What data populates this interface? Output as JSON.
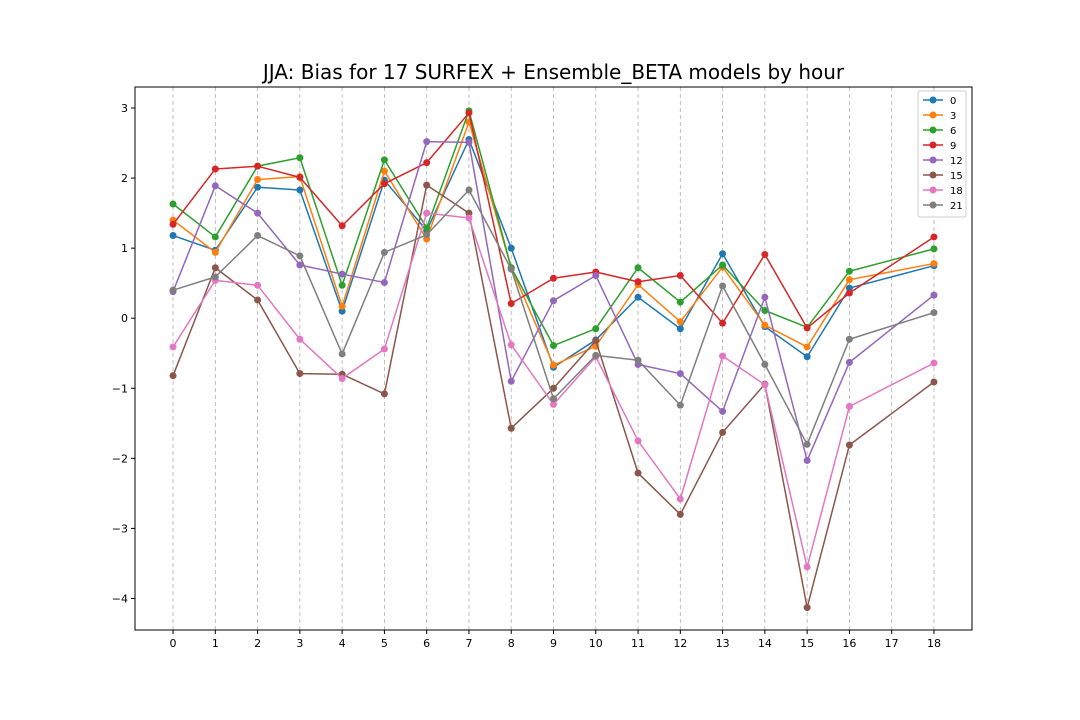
{
  "chart_data": {
    "type": "line",
    "title": "JJA: Bias for 17 SURFEX + Ensemble_BETA models by hour",
    "xlabel": "",
    "ylabel": "",
    "x": [
      0,
      1,
      2,
      3,
      4,
      5,
      6,
      7,
      8,
      9,
      10,
      11,
      12,
      13,
      14,
      15,
      16,
      18
    ],
    "xticks": [
      "0",
      "1",
      "2",
      "3",
      "4",
      "5",
      "6",
      "7",
      "8",
      "9",
      "10",
      "11",
      "12",
      "13",
      "14",
      "15",
      "16",
      "17",
      "18"
    ],
    "yticks": [
      "3",
      "2",
      "1",
      "0",
      "−1",
      "−2",
      "−3",
      "−4"
    ],
    "xlim": [
      -0.9,
      18.9
    ],
    "ylim": [
      -4.45,
      3.3
    ],
    "grid": "x-dashed",
    "legend": "top-right",
    "series": [
      {
        "name": "0",
        "color": "#1f77b4",
        "values": [
          1.18,
          0.97,
          1.87,
          1.83,
          0.1,
          1.97,
          1.25,
          2.55,
          1.0,
          -0.7,
          -0.31,
          0.3,
          -0.15,
          0.92,
          -0.12,
          -0.55,
          0.43,
          0.75
        ]
      },
      {
        "name": "3",
        "color": "#ff7f0e",
        "values": [
          1.4,
          0.94,
          1.98,
          2.02,
          0.17,
          2.1,
          1.13,
          2.8,
          0.72,
          -0.67,
          -0.4,
          0.48,
          -0.05,
          0.73,
          -0.1,
          -0.41,
          0.55,
          0.78
        ]
      },
      {
        "name": "6",
        "color": "#2ca02c",
        "values": [
          1.63,
          1.16,
          2.17,
          2.29,
          0.47,
          2.26,
          1.29,
          2.96,
          0.72,
          -0.39,
          -0.15,
          0.72,
          0.23,
          0.76,
          0.11,
          -0.13,
          0.67,
          0.99
        ]
      },
      {
        "name": "9",
        "color": "#d62728",
        "values": [
          1.34,
          2.13,
          2.17,
          2.01,
          1.32,
          1.92,
          2.22,
          2.93,
          0.21,
          0.57,
          0.66,
          0.52,
          0.61,
          -0.07,
          0.91,
          -0.14,
          0.36,
          1.16
        ]
      },
      {
        "name": "12",
        "color": "#9467bd",
        "values": [
          0.38,
          1.89,
          1.5,
          0.76,
          0.63,
          0.51,
          2.52,
          2.51,
          -0.9,
          0.25,
          0.61,
          -0.66,
          -0.79,
          -1.33,
          0.3,
          -2.03,
          -0.63,
          0.33
        ]
      },
      {
        "name": "15",
        "color": "#8c564b",
        "values": [
          -0.82,
          0.72,
          0.26,
          -0.79,
          -0.8,
          -1.08,
          1.9,
          1.5,
          -1.57,
          -1.0,
          -0.32,
          -2.21,
          -2.8,
          -1.63,
          -0.94,
          -4.13,
          -1.81,
          -0.91
        ]
      },
      {
        "name": "18",
        "color": "#e377c2",
        "values": [
          -0.41,
          0.54,
          0.47,
          -0.3,
          -0.86,
          -0.44,
          1.5,
          1.43,
          -0.38,
          -1.23,
          -0.55,
          -1.75,
          -2.58,
          -0.54,
          -0.95,
          -3.55,
          -1.26,
          -0.64
        ]
      },
      {
        "name": "21",
        "color": "#7f7f7f",
        "values": [
          0.4,
          0.59,
          1.18,
          0.89,
          -0.51,
          0.94,
          1.19,
          1.83,
          0.7,
          -1.15,
          -0.53,
          -0.6,
          -1.24,
          0.46,
          -0.66,
          -1.8,
          -0.3,
          0.08
        ]
      }
    ]
  }
}
